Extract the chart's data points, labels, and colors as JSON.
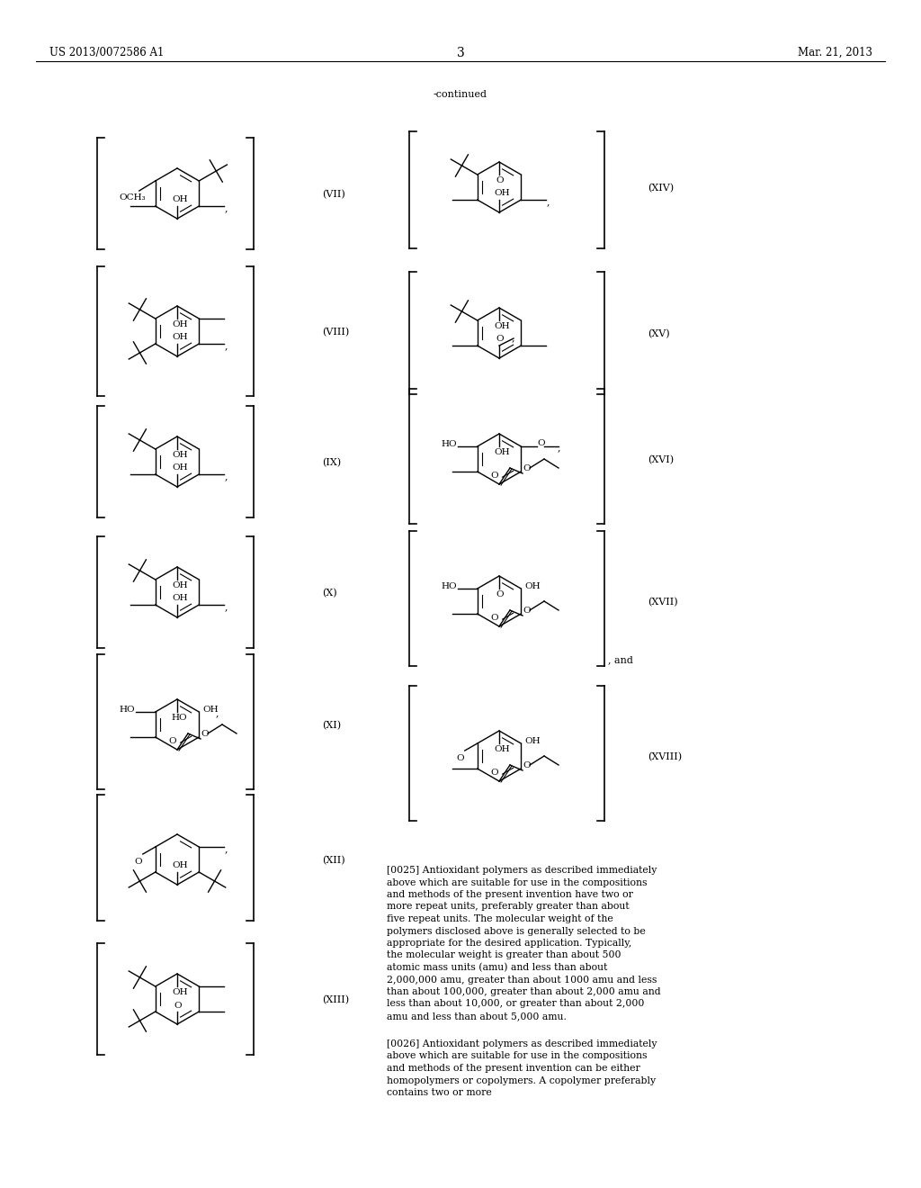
{
  "page_title_left": "US 2013/0072586 A1",
  "page_title_right": "Mar. 21, 2013",
  "page_number": "3",
  "continued_label": "-continued",
  "background_color": "#ffffff",
  "structures_left": [
    "VII",
    "VIII",
    "IX",
    "X",
    "XI",
    "XII",
    "XIII"
  ],
  "structures_right": [
    "XIV",
    "XV",
    "XVI",
    "XVII",
    "XVIII"
  ],
  "paragraph_0025_bold": "[0025]",
  "paragraph_0025_text": "  Antioxidant polymers as described immediately above which are suitable for use in the compositions and methods of the present invention have two or more repeat units, preferably greater than about five repeat units. The molecular weight of the polymers disclosed above is generally selected to be appropriate for the desired application. Typically, the molecular weight is greater than about 500 atomic mass units (amu) and less than about 2,000,000 amu, greater than about 1000 amu and less than about 100,000, greater than about 2,000 amu and less than about 10,000, or greater than about 2,000 amu and less than about 5,000 amu.",
  "paragraph_0026_bold": "[0026]",
  "paragraph_0026_text": "  Antioxidant polymers as described immediately above which are suitable for use in the compositions and methods of the present invention can be either homopolymers or copolymers. A copolymer preferably contains two or more"
}
